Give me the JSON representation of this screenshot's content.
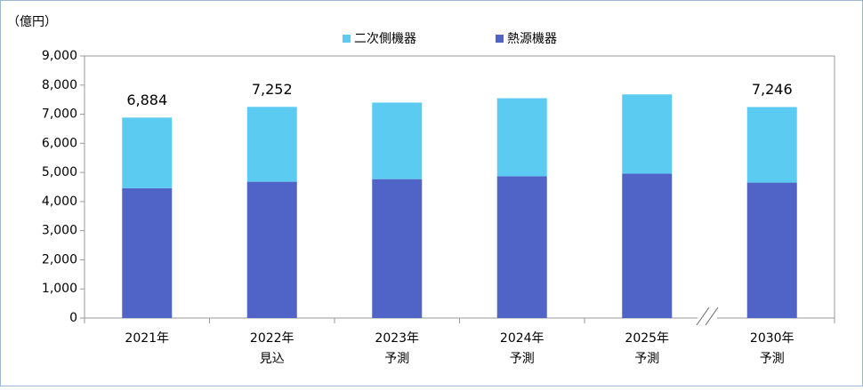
{
  "chart_data": {
    "type": "stacked_bar",
    "y_label": "（億円）",
    "categories": [
      [
        "2021年"
      ],
      [
        "2022年",
        "見込"
      ],
      [
        "2023年",
        "予測"
      ],
      [
        "2024年",
        "予測"
      ],
      [
        "2025年",
        "予測"
      ],
      [
        "2030年",
        "予測"
      ]
    ],
    "series": [
      {
        "name": "熱源機器",
        "color": "#5064c8",
        "values": [
          4460,
          4680,
          4770,
          4870,
          4960,
          4650
        ]
      },
      {
        "name": "二次側機器",
        "color": "#5ccbf2",
        "values": [
          2424,
          2572,
          2630,
          2680,
          2720,
          2596
        ]
      }
    ],
    "totals": [
      6884,
      7252,
      null,
      null,
      null,
      7246
    ],
    "total_labels": [
      "6,884",
      "7,252",
      null,
      null,
      null,
      "7,246"
    ],
    "ylim": [
      0,
      9000
    ],
    "yticks": [
      0,
      {
        "value": 1000,
        "label": "1,000"
      },
      {
        "value": 2000,
        "label": "2,000"
      },
      {
        "value": 3000,
        "label": "3,000"
      },
      {
        "value": 4000,
        "label": "4,000"
      },
      {
        "value": 5000,
        "label": "5,000"
      },
      {
        "value": 6000,
        "label": "6,000"
      },
      {
        "value": 7000,
        "label": "7,000"
      },
      {
        "value": 8000,
        "label": "8,000"
      },
      {
        "value": 9000,
        "label": "9,000"
      }
    ],
    "grid": false
  }
}
